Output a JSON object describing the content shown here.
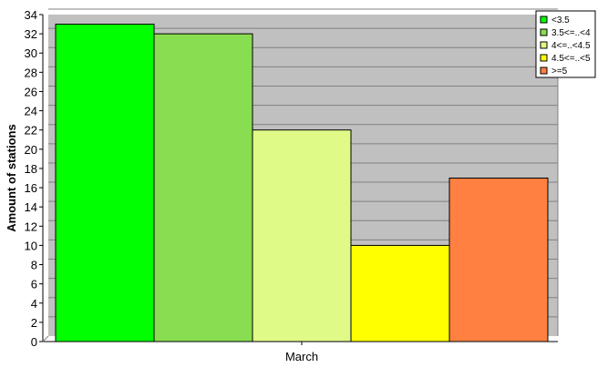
{
  "chart_data": {
    "type": "bar",
    "title": "",
    "xlabel": "",
    "ylabel": "Amount of stations",
    "categories": [
      "March"
    ],
    "ylim": [
      0,
      34
    ],
    "y_ticks": [
      0,
      2,
      4,
      6,
      8,
      10,
      12,
      14,
      16,
      18,
      20,
      22,
      24,
      26,
      28,
      30,
      32,
      34
    ],
    "grid": true,
    "legend_position": "top-right",
    "background_color": "#c0c0c0",
    "series": [
      {
        "name": "<3.5",
        "values": [
          33
        ],
        "color": "#00ff00"
      },
      {
        "name": "3.5<=..<4",
        "values": [
          32
        ],
        "color": "#88dd50"
      },
      {
        "name": "4<=..<4.5",
        "values": [
          22
        ],
        "color": "#e0fa88"
      },
      {
        "name": "4.5<=..<5",
        "values": [
          10
        ],
        "color": "#ffff00"
      },
      {
        "name": ">=5",
        "values": [
          17
        ],
        "color": "#ff8040"
      }
    ]
  }
}
